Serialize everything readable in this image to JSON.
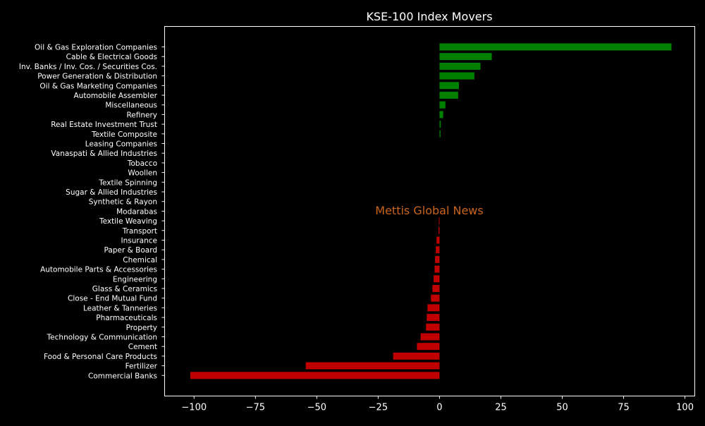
{
  "chart_data": {
    "type": "bar",
    "orientation": "horizontal",
    "title": "KSE-100 Index Movers",
    "watermark": "Mettis Global News",
    "xlim": [
      -112,
      104
    ],
    "xticks": [
      -100,
      -75,
      -50,
      -25,
      0,
      25,
      50,
      75,
      100
    ],
    "xtick_labels": [
      "−100",
      "−75",
      "−50",
      "−25",
      "0",
      "25",
      "50",
      "75",
      "100"
    ],
    "grid": false,
    "colors": {
      "positive": "#008000",
      "negative": "#c00000",
      "background": "#000000",
      "text": "#ffffff"
    },
    "categories": [
      "Oil & Gas Exploration Companies",
      "Cable & Electrical Goods",
      "Inv. Banks / Inv. Cos. / Securities Cos.",
      "Power Generation & Distribution",
      "Oil & Gas Marketing Companies",
      "Automobile Assembler",
      "Miscellaneous",
      "Refinery",
      "Real Estate Investment Trust",
      "Textile Composite",
      "Leasing Companies",
      "Vanaspati & Allied Industries",
      "Tobacco",
      "Woollen",
      "Textile Spinning",
      "Sugar & Allied Industries",
      "Synthetic & Rayon",
      "Modarabas",
      "Textile Weaving",
      "Transport",
      "Insurance",
      "Paper & Board",
      "Chemical",
      "Automobile Parts & Accessories",
      "Engineering",
      "Glass & Ceramics",
      "Close - End Mutual Fund",
      "Leather & Tanneries",
      "Pharmaceuticals",
      "Property",
      "Technology & Communication",
      "Cement",
      "Food & Personal Care Products",
      "Fertilizer",
      "Commercial Banks"
    ],
    "values": [
      94.5,
      21.3,
      16.7,
      14.2,
      7.9,
      7.6,
      2.4,
      1.5,
      0.5,
      0.4,
      0,
      0,
      0,
      0,
      0,
      0,
      0,
      0,
      -0.3,
      -0.4,
      -1.2,
      -1.5,
      -1.8,
      -2.0,
      -2.4,
      -2.9,
      -3.5,
      -4.9,
      -5.2,
      -5.5,
      -7.7,
      -9.2,
      -18.9,
      -54.5,
      -101.5
    ]
  }
}
